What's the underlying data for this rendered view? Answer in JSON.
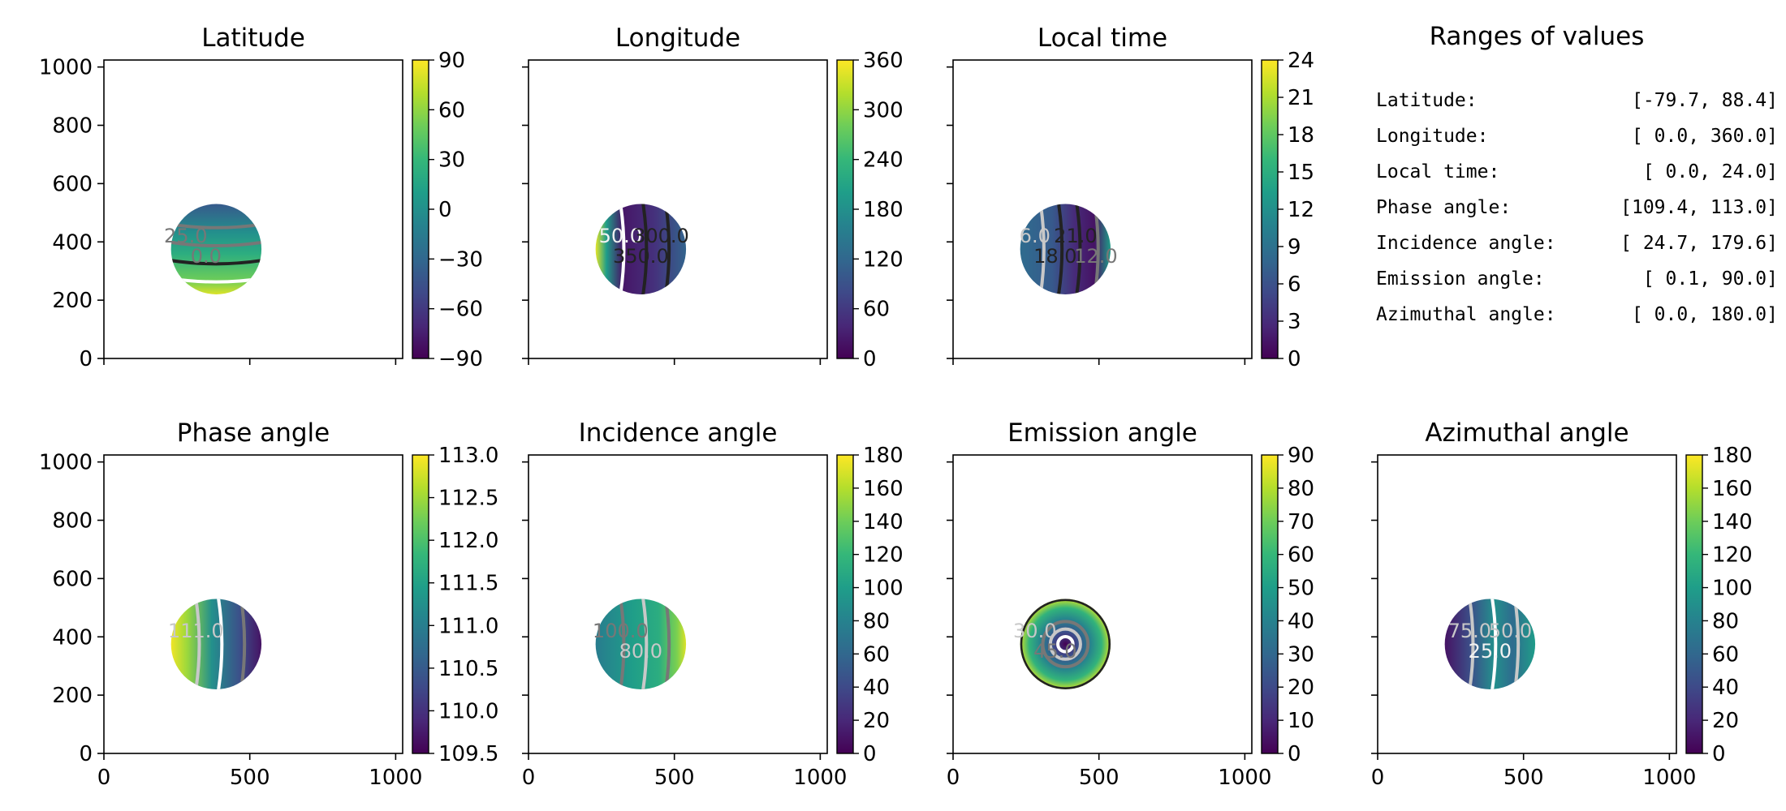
{
  "chart_data": {
    "type": "heatmap",
    "x_range": [
      0,
      1024
    ],
    "y_range": [
      0,
      1024
    ],
    "x_ticks": [
      0,
      500,
      1000
    ],
    "y_ticks": [
      0,
      200,
      400,
      600,
      800,
      1000
    ],
    "disk": {
      "center": [
        385,
        375
      ],
      "radius": 155
    },
    "colormap": "viridis",
    "panels": [
      {
        "title": "Latitude",
        "vmin": -90,
        "vmax": 90,
        "colorbar_ticks": [
          "90",
          "60",
          "30",
          "0",
          "−30",
          "−60",
          "−90"
        ],
        "contours": [
          {
            "value": 25,
            "label": "25.0"
          },
          {
            "value": 0,
            "label": "0.0"
          },
          {
            "value": 75,
            "label": ""
          },
          {
            "value": -50,
            "label": ""
          }
        ]
      },
      {
        "title": "Longitude",
        "vmin": 0,
        "vmax": 360,
        "colorbar_ticks": [
          "360",
          "300",
          "240",
          "180",
          "120",
          "60",
          "0"
        ],
        "contours": [
          {
            "value": 50,
            "label": "50.0"
          },
          {
            "value": 350,
            "label": "350.0"
          },
          {
            "value": 300,
            "label": "300.0"
          }
        ]
      },
      {
        "title": "Local time",
        "vmin": 0,
        "vmax": 24,
        "colorbar_ticks": [
          "24",
          "21",
          "18",
          "15",
          "12",
          "9",
          "6",
          "3",
          "0"
        ],
        "contours": [
          {
            "value": 6,
            "label": "6.0"
          },
          {
            "value": 18,
            "label": "18.0"
          },
          {
            "value": 21,
            "label": "21.0"
          },
          {
            "value": 12,
            "label": "12.0"
          }
        ]
      },
      {
        "title": "Phase angle",
        "vmin": 109.4,
        "vmax": 113.0,
        "colorbar_ticks": [
          "113.0",
          "112.5",
          "112.0",
          "111.5",
          "111.0",
          "110.5",
          "110.0",
          "109.5"
        ],
        "contours": [
          {
            "value": 111,
            "label": "111.0"
          },
          {
            "value": 110,
            "label": ""
          },
          {
            "value": 112,
            "label": ""
          }
        ]
      },
      {
        "title": "Incidence angle",
        "vmin": 0,
        "vmax": 180,
        "colorbar_ticks": [
          "180",
          "160",
          "140",
          "120",
          "100",
          "80",
          "60",
          "40",
          "20",
          "0"
        ],
        "contours": [
          {
            "value": 100,
            "label": "100.0"
          },
          {
            "value": 80,
            "label": "80.0"
          },
          {
            "value": 120,
            "label": ""
          }
        ]
      },
      {
        "title": "Emission angle",
        "vmin": 0,
        "vmax": 90,
        "colorbar_ticks": [
          "90",
          "80",
          "70",
          "60",
          "50",
          "40",
          "30",
          "20",
          "10",
          "0"
        ],
        "contours": [
          {
            "value": 30,
            "label": "30.0"
          },
          {
            "value": 45,
            "label": "45.0"
          },
          {
            "value": 15,
            "label": ""
          },
          {
            "value": 89,
            "label": ""
          }
        ]
      },
      {
        "title": "Azimuthal angle",
        "vmin": 0,
        "vmax": 180,
        "colorbar_ticks": [
          "180",
          "160",
          "140",
          "120",
          "100",
          "80",
          "60",
          "40",
          "20",
          "0"
        ],
        "contours": [
          {
            "value": 75,
            "label": "75.0"
          },
          {
            "value": 25,
            "label": "25.0"
          },
          {
            "value": 50,
            "label": "50.0"
          }
        ]
      }
    ],
    "ranges": {
      "title": "Ranges of values",
      "rows": [
        {
          "label": "Latitude:",
          "value": "[-79.7,  88.4]"
        },
        {
          "label": "Longitude:",
          "value": "[  0.0, 360.0]"
        },
        {
          "label": "Local time:",
          "value": "[  0.0,  24.0]"
        },
        {
          "label": "Phase angle:",
          "value": "[109.4, 113.0]"
        },
        {
          "label": "Incidence angle:",
          "value": "[ 24.7, 179.6]"
        },
        {
          "label": "Emission angle:",
          "value": "[  0.1,  90.0]"
        },
        {
          "label": "Azimuthal angle:",
          "value": "[  0.0, 180.0]"
        }
      ]
    }
  }
}
